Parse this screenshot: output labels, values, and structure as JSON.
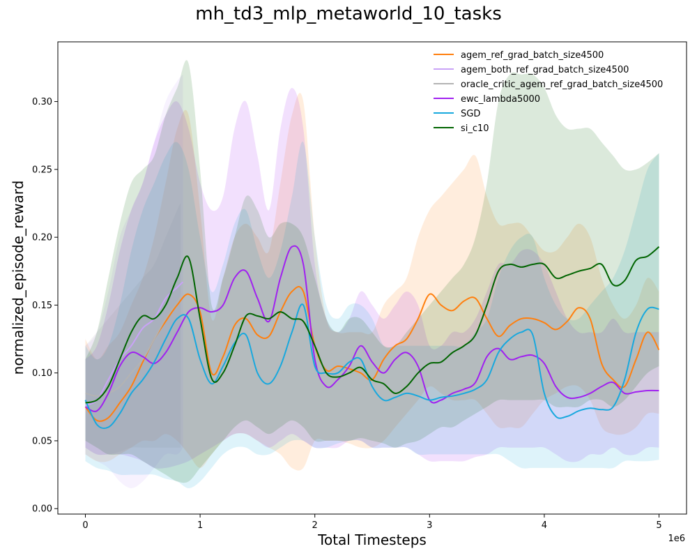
{
  "chart_data": {
    "type": "line",
    "title": "mh_td3_mlp_metaworld_10_tasks",
    "xlabel": "Total Timesteps",
    "ylabel": "normalized_episode_reward",
    "x_offset_label": "1e6",
    "xlim": [
      -0.24,
      5.24
    ],
    "ylim": [
      -0.004,
      0.344
    ],
    "x_ticks": [
      0,
      1,
      2,
      3,
      4,
      5
    ],
    "y_ticks": [
      0.0,
      0.05,
      0.1,
      0.15,
      0.2,
      0.25,
      0.3
    ],
    "x_tick_labels": [
      "0",
      "1",
      "2",
      "3",
      "4",
      "5"
    ],
    "y_tick_labels": [
      "0.00",
      "0.05",
      "0.10",
      "0.15",
      "0.20",
      "0.25",
      "0.30"
    ],
    "grid": false,
    "legend_position": "top-right",
    "series": [
      {
        "name": "agem_ref_grad_batch_size4500",
        "color": "#ff7f0e",
        "x": [
          0,
          0.1,
          0.2,
          0.3,
          0.4,
          0.5,
          0.6,
          0.7,
          0.8,
          0.9,
          1.0,
          1.1,
          1.2,
          1.3,
          1.4,
          1.5,
          1.6,
          1.7,
          1.8,
          1.9,
          2.0,
          2.1,
          2.2,
          2.3,
          2.4,
          2.5,
          2.6,
          2.7,
          2.8,
          2.9,
          3.0,
          3.1,
          3.2,
          3.3,
          3.4,
          3.5,
          3.6,
          3.7,
          3.8,
          3.9,
          4.0,
          4.1,
          4.2,
          4.3,
          4.4,
          4.5,
          4.6,
          4.7,
          4.8,
          4.9,
          5.0
        ],
        "y": [
          0.075,
          0.065,
          0.067,
          0.078,
          0.09,
          0.108,
          0.125,
          0.138,
          0.15,
          0.158,
          0.145,
          0.1,
          0.112,
          0.135,
          0.14,
          0.128,
          0.127,
          0.145,
          0.16,
          0.16,
          0.12,
          0.102,
          0.105,
          0.103,
          0.1,
          0.095,
          0.11,
          0.12,
          0.125,
          0.14,
          0.158,
          0.15,
          0.146,
          0.153,
          0.155,
          0.14,
          0.127,
          0.135,
          0.14,
          0.14,
          0.137,
          0.132,
          0.138,
          0.148,
          0.14,
          0.107,
          0.095,
          0.09,
          0.11,
          0.13,
          0.117
        ],
        "y_upper": [
          0.125,
          0.11,
          0.12,
          0.13,
          0.15,
          0.17,
          0.2,
          0.24,
          0.28,
          0.29,
          0.22,
          0.14,
          0.17,
          0.2,
          0.21,
          0.2,
          0.19,
          0.24,
          0.29,
          0.3,
          0.2,
          0.14,
          0.13,
          0.13,
          0.13,
          0.13,
          0.15,
          0.16,
          0.17,
          0.2,
          0.22,
          0.23,
          0.24,
          0.25,
          0.26,
          0.23,
          0.21,
          0.21,
          0.21,
          0.2,
          0.19,
          0.19,
          0.2,
          0.21,
          0.2,
          0.17,
          0.15,
          0.14,
          0.15,
          0.17,
          0.16
        ],
        "y_lower": [
          0.04,
          0.035,
          0.035,
          0.04,
          0.045,
          0.05,
          0.05,
          0.055,
          0.05,
          0.04,
          0.03,
          0.04,
          0.05,
          0.055,
          0.055,
          0.05,
          0.045,
          0.04,
          0.03,
          0.03,
          0.05,
          0.05,
          0.05,
          0.048,
          0.045,
          0.045,
          0.05,
          0.06,
          0.07,
          0.08,
          0.09,
          0.085,
          0.08,
          0.08,
          0.08,
          0.07,
          0.06,
          0.06,
          0.06,
          0.07,
          0.08,
          0.085,
          0.09,
          0.09,
          0.08,
          0.06,
          0.055,
          0.055,
          0.06,
          0.07,
          0.07
        ]
      },
      {
        "name": "agem_both_ref_grad_batch_size4500",
        "color": "#c9a2f7",
        "x": [
          0,
          0.1,
          0.2,
          0.3,
          0.4,
          0.5,
          0.6,
          0.7,
          0.8,
          0.85
        ],
        "y": [
          0.076,
          0.08,
          0.095,
          0.11,
          0.12,
          0.133,
          0.14,
          0.155,
          0.163,
          0.167
        ],
        "y_upper": [
          0.12,
          0.13,
          0.16,
          0.2,
          0.22,
          0.24,
          0.27,
          0.3,
          0.315,
          0.32
        ],
        "y_lower": [
          0.04,
          0.035,
          0.03,
          0.02,
          0.015,
          0.02,
          0.03,
          0.04,
          0.04,
          0.045
        ]
      },
      {
        "name": "oracle_critic_agem_ref_grad_batch_size4500",
        "color": "#b3b3b3",
        "x": [
          0,
          0.1,
          0.2,
          0.3,
          0.4,
          0.5,
          0.6,
          0.7,
          0.8,
          0.83
        ],
        "y": [
          0.085,
          0.083,
          0.085,
          0.09,
          0.1,
          0.11,
          0.125,
          0.14,
          0.152,
          0.156
        ],
        "y_upper": [
          0.12,
          0.13,
          0.14,
          0.15,
          0.16,
          0.17,
          0.18,
          0.2,
          0.22,
          0.225
        ],
        "y_lower": [
          0.045,
          0.04,
          0.04,
          0.042,
          0.045,
          0.045,
          0.045,
          0.045,
          0.045,
          0.045
        ]
      },
      {
        "name": "ewc_lambda5000",
        "color": "#a020f0",
        "x": [
          0,
          0.1,
          0.2,
          0.3,
          0.4,
          0.5,
          0.6,
          0.7,
          0.8,
          0.9,
          1.0,
          1.1,
          1.2,
          1.3,
          1.4,
          1.5,
          1.6,
          1.7,
          1.8,
          1.9,
          2.0,
          2.1,
          2.2,
          2.3,
          2.4,
          2.5,
          2.6,
          2.7,
          2.8,
          2.9,
          3.0,
          3.1,
          3.2,
          3.3,
          3.4,
          3.5,
          3.6,
          3.7,
          3.8,
          3.9,
          4.0,
          4.1,
          4.2,
          4.3,
          4.4,
          4.5,
          4.6,
          4.7,
          4.8,
          4.9,
          5.0
        ],
        "y": [
          0.075,
          0.072,
          0.085,
          0.105,
          0.115,
          0.112,
          0.107,
          0.115,
          0.13,
          0.145,
          0.148,
          0.145,
          0.15,
          0.17,
          0.175,
          0.155,
          0.138,
          0.17,
          0.193,
          0.18,
          0.11,
          0.09,
          0.095,
          0.105,
          0.12,
          0.108,
          0.1,
          0.11,
          0.115,
          0.105,
          0.08,
          0.08,
          0.085,
          0.088,
          0.093,
          0.112,
          0.118,
          0.11,
          0.112,
          0.113,
          0.107,
          0.09,
          0.082,
          0.082,
          0.085,
          0.09,
          0.093,
          0.085,
          0.086,
          0.087,
          0.087
        ],
        "y_upper": [
          0.11,
          0.12,
          0.15,
          0.19,
          0.22,
          0.24,
          0.27,
          0.29,
          0.3,
          0.28,
          0.24,
          0.22,
          0.23,
          0.28,
          0.3,
          0.26,
          0.22,
          0.28,
          0.31,
          0.28,
          0.18,
          0.14,
          0.13,
          0.14,
          0.16,
          0.15,
          0.14,
          0.15,
          0.16,
          0.15,
          0.12,
          0.12,
          0.13,
          0.13,
          0.14,
          0.16,
          0.18,
          0.18,
          0.19,
          0.19,
          0.18,
          0.16,
          0.14,
          0.13,
          0.13,
          0.13,
          0.14,
          0.13,
          0.13,
          0.13,
          0.13
        ],
        "y_lower": [
          0.045,
          0.04,
          0.04,
          0.04,
          0.038,
          0.035,
          0.03,
          0.03,
          0.032,
          0.035,
          0.04,
          0.045,
          0.05,
          0.055,
          0.055,
          0.05,
          0.045,
          0.05,
          0.055,
          0.05,
          0.045,
          0.045,
          0.045,
          0.05,
          0.05,
          0.045,
          0.045,
          0.045,
          0.045,
          0.04,
          0.035,
          0.035,
          0.035,
          0.035,
          0.038,
          0.04,
          0.045,
          0.045,
          0.045,
          0.045,
          0.045,
          0.04,
          0.035,
          0.035,
          0.04,
          0.04,
          0.045,
          0.04,
          0.04,
          0.045,
          0.045
        ]
      },
      {
        "name": "SGD",
        "color": "#17a8de",
        "x": [
          0,
          0.1,
          0.2,
          0.3,
          0.4,
          0.5,
          0.6,
          0.7,
          0.8,
          0.9,
          1.0,
          1.1,
          1.2,
          1.3,
          1.4,
          1.5,
          1.6,
          1.7,
          1.8,
          1.9,
          2.0,
          2.1,
          2.2,
          2.3,
          2.4,
          2.5,
          2.6,
          2.7,
          2.8,
          2.9,
          3.0,
          3.1,
          3.2,
          3.3,
          3.4,
          3.5,
          3.6,
          3.7,
          3.8,
          3.9,
          4.0,
          4.1,
          4.2,
          4.3,
          4.4,
          4.5,
          4.6,
          4.7,
          4.8,
          4.9,
          5.0
        ],
        "y": [
          0.08,
          0.062,
          0.06,
          0.07,
          0.085,
          0.095,
          0.108,
          0.125,
          0.14,
          0.14,
          0.11,
          0.092,
          0.105,
          0.122,
          0.128,
          0.1,
          0.092,
          0.105,
          0.13,
          0.15,
          0.105,
          0.1,
          0.1,
          0.108,
          0.11,
          0.09,
          0.08,
          0.082,
          0.085,
          0.083,
          0.08,
          0.082,
          0.083,
          0.085,
          0.088,
          0.095,
          0.115,
          0.125,
          0.13,
          0.128,
          0.085,
          0.068,
          0.068,
          0.072,
          0.074,
          0.073,
          0.075,
          0.095,
          0.13,
          0.147,
          0.147
        ],
        "y_upper": [
          0.12,
          0.11,
          0.12,
          0.15,
          0.19,
          0.22,
          0.24,
          0.26,
          0.27,
          0.25,
          0.2,
          0.16,
          0.18,
          0.21,
          0.22,
          0.19,
          0.17,
          0.19,
          0.23,
          0.27,
          0.2,
          0.15,
          0.14,
          0.15,
          0.15,
          0.14,
          0.12,
          0.12,
          0.12,
          0.12,
          0.12,
          0.12,
          0.12,
          0.12,
          0.13,
          0.14,
          0.17,
          0.19,
          0.2,
          0.2,
          0.17,
          0.15,
          0.14,
          0.14,
          0.15,
          0.16,
          0.17,
          0.19,
          0.22,
          0.25,
          0.262
        ],
        "y_lower": [
          0.035,
          0.03,
          0.028,
          0.025,
          0.025,
          0.025,
          0.025,
          0.022,
          0.02,
          0.015,
          0.02,
          0.03,
          0.04,
          0.045,
          0.045,
          0.04,
          0.04,
          0.045,
          0.05,
          0.05,
          0.045,
          0.045,
          0.048,
          0.05,
          0.05,
          0.045,
          0.045,
          0.045,
          0.045,
          0.04,
          0.04,
          0.04,
          0.04,
          0.04,
          0.04,
          0.04,
          0.04,
          0.035,
          0.03,
          0.03,
          0.03,
          0.03,
          0.03,
          0.03,
          0.03,
          0.03,
          0.03,
          0.035,
          0.035,
          0.035,
          0.036
        ]
      },
      {
        "name": "si_c10",
        "color": "#006400",
        "x": [
          0,
          0.1,
          0.2,
          0.3,
          0.4,
          0.5,
          0.6,
          0.7,
          0.8,
          0.9,
          1.0,
          1.1,
          1.2,
          1.3,
          1.4,
          1.5,
          1.6,
          1.7,
          1.8,
          1.9,
          2.0,
          2.1,
          2.2,
          2.3,
          2.4,
          2.5,
          2.6,
          2.7,
          2.8,
          2.9,
          3.0,
          3.1,
          3.2,
          3.3,
          3.4,
          3.5,
          3.6,
          3.7,
          3.8,
          3.9,
          4.0,
          4.1,
          4.2,
          4.3,
          4.4,
          4.5,
          4.6,
          4.7,
          4.8,
          4.9,
          5.0
        ],
        "y": [
          0.078,
          0.08,
          0.09,
          0.11,
          0.13,
          0.142,
          0.14,
          0.15,
          0.17,
          0.185,
          0.14,
          0.096,
          0.1,
          0.12,
          0.142,
          0.142,
          0.14,
          0.145,
          0.14,
          0.138,
          0.12,
          0.1,
          0.097,
          0.1,
          0.104,
          0.095,
          0.092,
          0.085,
          0.09,
          0.1,
          0.107,
          0.108,
          0.115,
          0.12,
          0.128,
          0.15,
          0.175,
          0.18,
          0.178,
          0.18,
          0.18,
          0.17,
          0.172,
          0.175,
          0.177,
          0.18,
          0.165,
          0.168,
          0.183,
          0.186,
          0.193
        ],
        "y_upper": [
          0.11,
          0.13,
          0.17,
          0.21,
          0.24,
          0.25,
          0.26,
          0.29,
          0.31,
          0.328,
          0.25,
          0.15,
          0.17,
          0.2,
          0.23,
          0.22,
          0.2,
          0.21,
          0.21,
          0.2,
          0.17,
          0.14,
          0.13,
          0.14,
          0.14,
          0.13,
          0.12,
          0.12,
          0.13,
          0.14,
          0.15,
          0.16,
          0.17,
          0.18,
          0.2,
          0.24,
          0.3,
          0.32,
          0.32,
          0.32,
          0.31,
          0.29,
          0.28,
          0.28,
          0.28,
          0.27,
          0.26,
          0.25,
          0.25,
          0.255,
          0.262
        ],
        "y_lower": [
          0.05,
          0.045,
          0.04,
          0.04,
          0.04,
          0.035,
          0.03,
          0.025,
          0.02,
          0.02,
          0.03,
          0.04,
          0.05,
          0.06,
          0.065,
          0.06,
          0.055,
          0.06,
          0.065,
          0.06,
          0.05,
          0.05,
          0.05,
          0.05,
          0.052,
          0.05,
          0.048,
          0.045,
          0.048,
          0.05,
          0.055,
          0.06,
          0.06,
          0.065,
          0.07,
          0.075,
          0.08,
          0.08,
          0.08,
          0.08,
          0.08,
          0.075,
          0.075,
          0.075,
          0.08,
          0.08,
          0.075,
          0.08,
          0.09,
          0.1,
          0.105
        ]
      }
    ]
  }
}
